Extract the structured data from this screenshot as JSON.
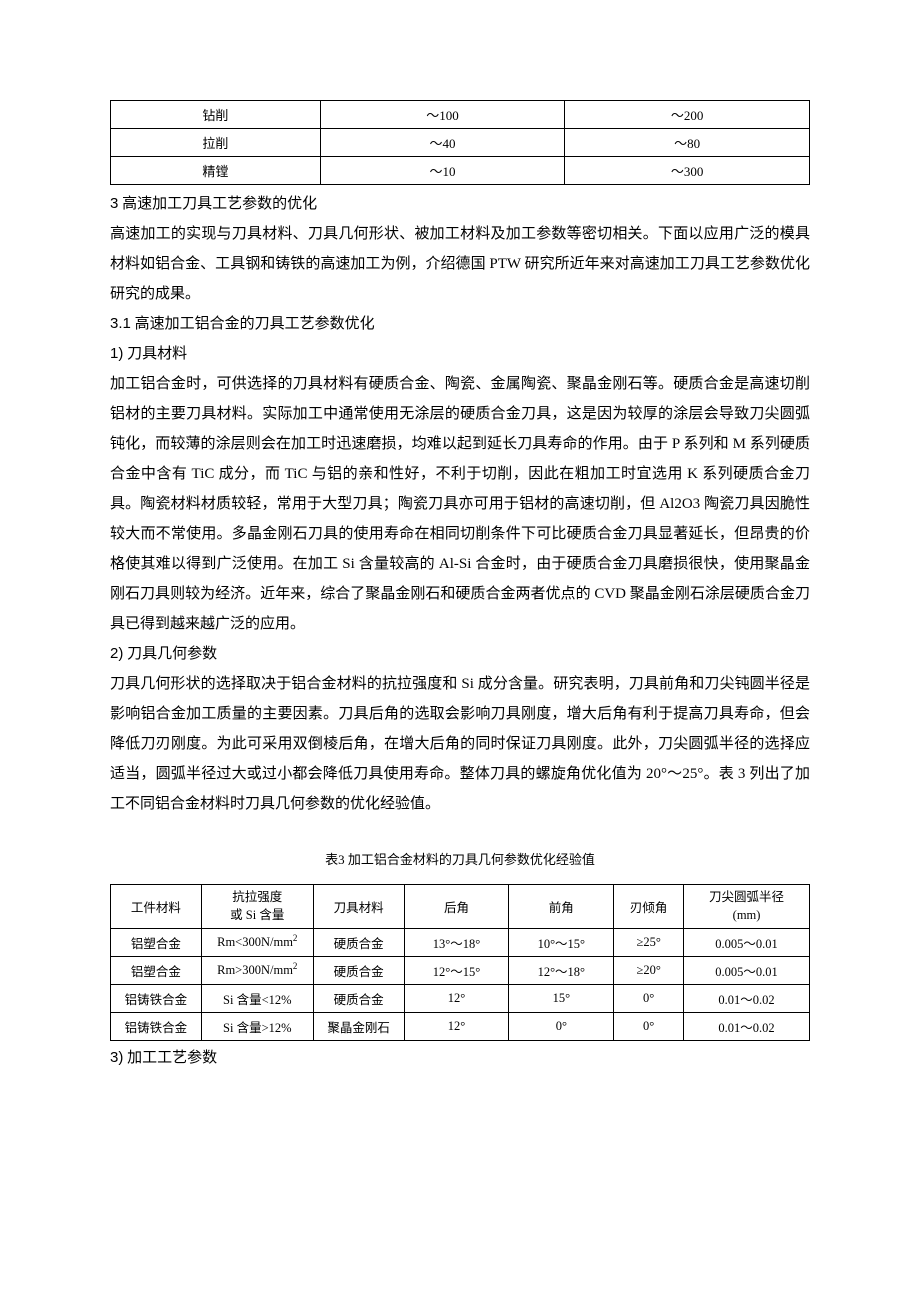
{
  "table1": {
    "rows": [
      {
        "c1": "钻削",
        "c2": "～100",
        "c3": "～200"
      },
      {
        "c1": "拉削",
        "c2": "～40",
        "c3": "～80"
      },
      {
        "c1": "精镗",
        "c2": "～10",
        "c3": "～300"
      }
    ]
  },
  "section3": {
    "heading_num": "3",
    "heading_text": "高速加工刀具工艺参数的优化",
    "para1": "高速加工的实现与刀具材料、刀具几何形状、被加工材料及加工参数等密切相关。下面以应用广泛的模具材料如铝合金、工具钢和铸铁的高速加工为例，介绍德国 PTW 研究所近年来对高速加工刀具工艺参数优化研究的成果。"
  },
  "section31": {
    "heading_num": "3.1",
    "heading_text": "高速加工铝合金的刀具工艺参数优化",
    "sub1_num": "1)",
    "sub1_title": "刀具材料",
    "sub1_para": "加工铝合金时，可供选择的刀具材料有硬质合金、陶瓷、金属陶瓷、聚晶金刚石等。硬质合金是高速切削铝材的主要刀具材料。实际加工中通常使用无涂层的硬质合金刀具，这是因为较厚的涂层会导致刀尖圆弧钝化，而较薄的涂层则会在加工时迅速磨损，均难以起到延长刀具寿命的作用。由于 P 系列和 M 系列硬质合金中含有 TiC 成分，而 TiC 与铝的亲和性好，不利于切削，因此在粗加工时宜选用 K 系列硬质合金刀具。陶瓷材料材质较轻，常用于大型刀具；陶瓷刀具亦可用于铝材的高速切削，但 Al2O3 陶瓷刀具因脆性较大而不常使用。多晶金刚石刀具的使用寿命在相同切削条件下可比硬质合金刀具显著延长，但昂贵的价格使其难以得到广泛使用。在加工 Si 含量较高的 Al-Si 合金时，由于硬质合金刀具磨损很快，使用聚晶金刚石刀具则较为经济。近年来，综合了聚晶金刚石和硬质合金两者优点的 CVD 聚晶金刚石涂层硬质合金刀具已得到越来越广泛的应用。",
    "sub2_num": "2)",
    "sub2_title": "刀具几何参数",
    "sub2_para": "刀具几何形状的选择取决于铝合金材料的抗拉强度和 Si 成分含量。研究表明，刀具前角和刀尖钝圆半径是影响铝合金加工质量的主要因素。刀具后角的选取会影响刀具刚度，增大后角有利于提高刀具寿命，但会降低刀刃刚度。为此可采用双倒棱后角，在增大后角的同时保证刀具刚度。此外，刀尖圆弧半径的选择应适当，圆弧半径过大或过小都会降低刀具使用寿命。整体刀具的螺旋角优化值为 20°～25°。表 3 列出了加工不同铝合金材料时刀具几何参数的优化经验值。"
  },
  "table3": {
    "caption": "表3 加工铝合金材料的刀具几何参数优化经验值",
    "headers": {
      "c1": "工件材料",
      "c2a": "抗拉强度",
      "c2b": "或 Si 含量",
      "c3": "刀具材料",
      "c4": "后角",
      "c5": "前角",
      "c6": "刃倾角",
      "c7a": "刀尖圆弧半径",
      "c7b": "(mm)"
    },
    "rows": [
      {
        "c1": "铝塑合金",
        "c2_pre": "Rm<300N/mm",
        "c2_sup": "2",
        "c3": "硬质合金",
        "c4": "13°～18°",
        "c5": "10°～15°",
        "c6": "≥25°",
        "c7": "0.005～0.01"
      },
      {
        "c1": "铝塑合金",
        "c2_pre": "Rm>300N/mm",
        "c2_sup": "2",
        "c3": "硬质合金",
        "c4": "12°～15°",
        "c5": "12°～18°",
        "c6": "≥20°",
        "c7": "0.005～0.01"
      },
      {
        "c1": "铝铸铁合金",
        "c2_pre": "Si 含量<12%",
        "c2_sup": "",
        "c3": "硬质合金",
        "c4": "12°",
        "c5": "15°",
        "c6": "0°",
        "c7": "0.01～0.02"
      },
      {
        "c1": "铝铸铁合金",
        "c2_pre": "Si 含量>12%",
        "c2_sup": "",
        "c3": "聚晶金刚石",
        "c4": "12°",
        "c5": "0°",
        "c6": "0°",
        "c7": "0.01～0.02"
      }
    ]
  },
  "section_sub3": {
    "num": "3)",
    "title": "加工工艺参数"
  },
  "colwidths": {
    "t1": {
      "c1": "30%",
      "c2": "35%",
      "c3": "35%"
    },
    "t3": {
      "c1": "13%",
      "c2": "16%",
      "c3": "13%",
      "c4": "15%",
      "c5": "15%",
      "c6": "10%",
      "c7": "18%"
    }
  }
}
